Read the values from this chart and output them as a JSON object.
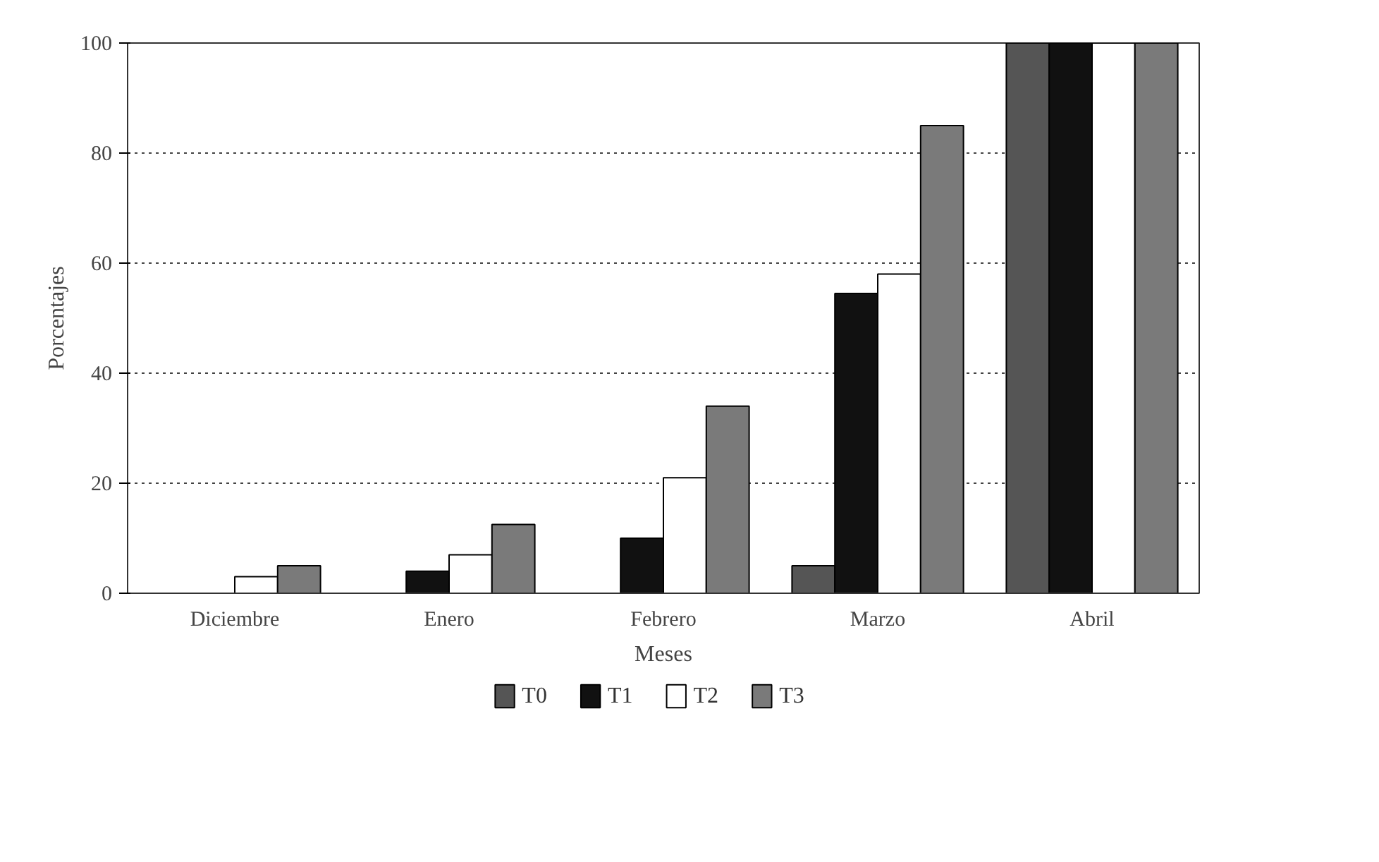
{
  "chart_data": {
    "type": "bar",
    "xlabel": "Meses",
    "ylabel": "Porcentajes",
    "categories": [
      "Diciembre",
      "Enero",
      "Febrero",
      "Marzo",
      "Abril"
    ],
    "series": [
      {
        "name": "T0",
        "color": "#555555",
        "values": [
          0,
          0,
          0,
          5,
          100
        ]
      },
      {
        "name": "T1",
        "color": "#111111",
        "values": [
          0,
          4,
          10,
          54.5,
          100
        ]
      },
      {
        "name": "T2",
        "color": "#ffffff",
        "values": [
          3,
          7,
          21,
          58,
          100
        ]
      },
      {
        "name": "T3",
        "color": "#7a7a7a",
        "values": [
          5,
          12.5,
          34,
          85,
          100
        ]
      }
    ],
    "ylim": [
      0,
      100
    ],
    "yticks": [
      0,
      20,
      40,
      60,
      80,
      100
    ],
    "grid": "y",
    "legend": "bottom"
  }
}
